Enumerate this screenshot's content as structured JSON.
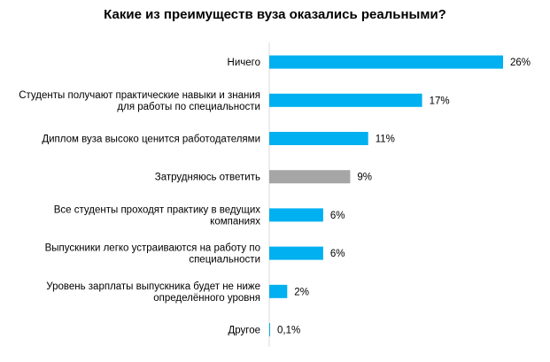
{
  "chart_data": {
    "type": "bar",
    "orientation": "horizontal",
    "title": "Какие из преимуществ вуза оказались реальными?",
    "categories": [
      [
        "Ничего"
      ],
      [
        "Студенты получают практические навыки и знания",
        "для работы по специальности"
      ],
      [
        "Диплом вуза высоко ценится работодателями"
      ],
      [
        "Затрудняюсь ответить"
      ],
      [
        "Все студенты проходят практику в ведущих",
        "компаниях"
      ],
      [
        "Выпускники легко устраиваются на работу по",
        "специальности"
      ],
      [
        "Уровень зарплаты выпускника будет не ниже",
        "определённого уровня"
      ],
      [
        "Другое"
      ]
    ],
    "values": [
      26,
      17,
      11,
      9,
      6,
      6,
      2,
      0.1
    ],
    "value_labels": [
      "26%",
      "17%",
      "11%",
      "9%",
      "6%",
      "6%",
      "2%",
      "0,1%"
    ],
    "unit": "%",
    "xlim": [
      0,
      26
    ],
    "grid": false,
    "legend": "none",
    "colors": {
      "default": "#00B0F0",
      "highlight": "#A6A6A6",
      "highlight_index": 3
    }
  }
}
